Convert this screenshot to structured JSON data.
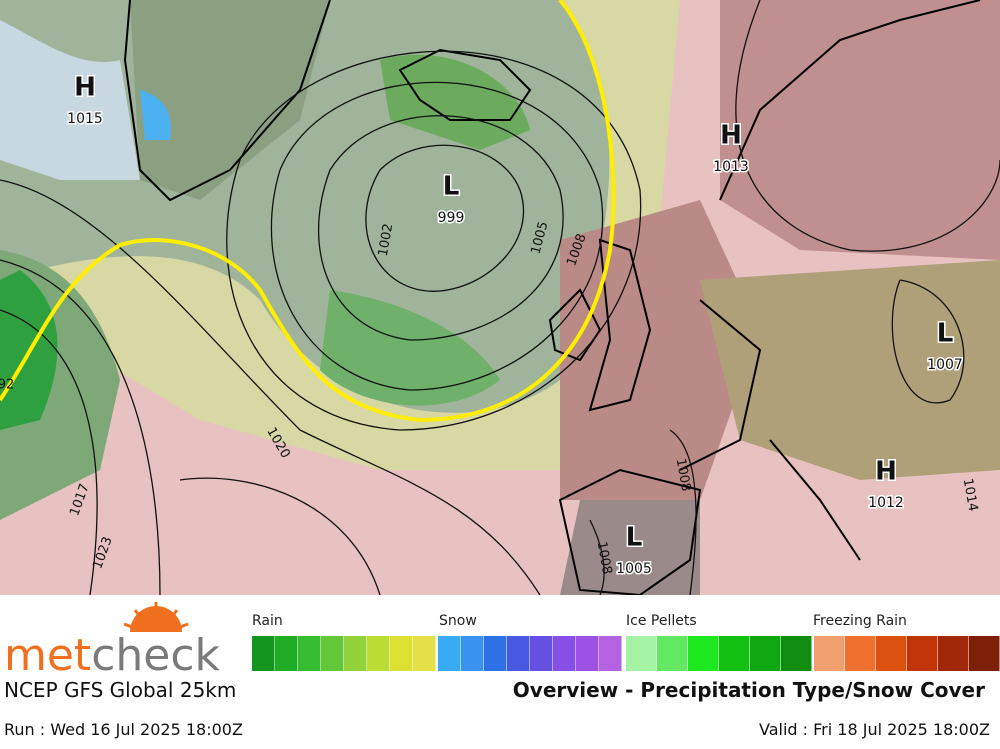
{
  "map": {
    "pressure_centers": [
      {
        "type": "H",
        "value": "1015"
      },
      {
        "type": "L",
        "value": "999"
      },
      {
        "type": "H",
        "value": "1013"
      },
      {
        "type": "L",
        "value": "1007"
      },
      {
        "type": "H",
        "value": "1012"
      },
      {
        "type": "L",
        "value": "1005"
      }
    ],
    "isobar_labels": [
      "1002",
      "1005",
      "1008",
      "1020",
      "1017",
      "1023",
      "1008",
      "1008",
      "1014",
      "92"
    ]
  },
  "legend": {
    "categories": [
      "Rain",
      "Snow",
      "Ice Pellets",
      "Freezing Rain"
    ]
  },
  "footer": {
    "logo": [
      "met",
      "check"
    ],
    "model": "NCEP GFS Global 25km",
    "title": "Overview - Precipitation Type/Snow Cover",
    "run": "Run : Wed 16 Jul 2025 18:00Z",
    "valid": "Valid : Fri 18 Jul 2025 18:00Z"
  }
}
